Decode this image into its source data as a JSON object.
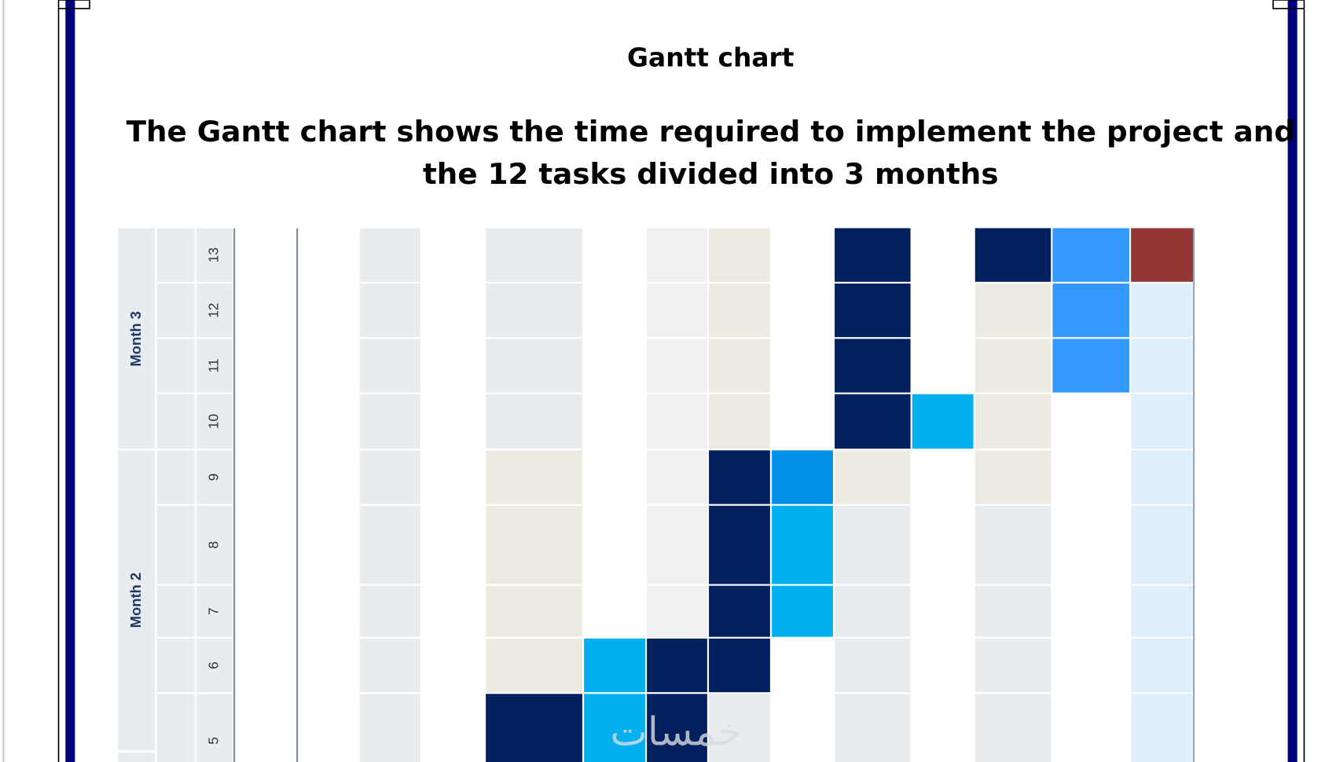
{
  "header": {
    "title": "Gantt chart",
    "subtitle": [
      "The Gantt chart shows the time required to implement the project and",
      "the 12 tasks divided into 3 months"
    ]
  },
  "table": {
    "months": [
      "Month 3",
      "Month   2"
    ],
    "weeks": [
      "13",
      "12",
      "11",
      "10",
      "9",
      "8",
      "7",
      "6",
      "5"
    ]
  },
  "watermark": "خمسات"
}
